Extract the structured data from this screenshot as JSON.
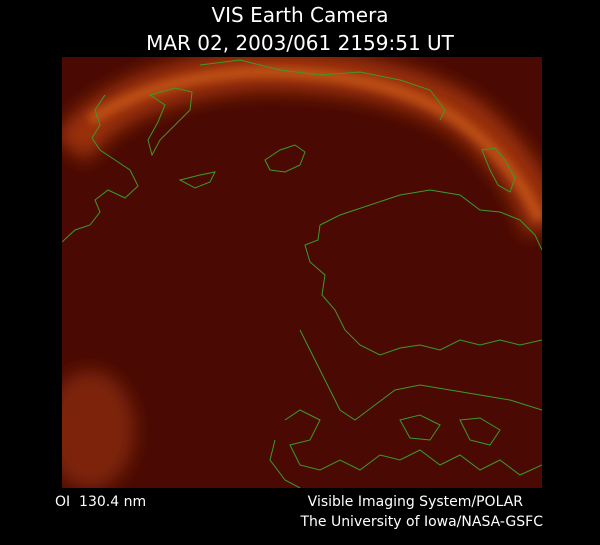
{
  "header": {
    "title": "VIS Earth Camera",
    "timestamp": "MAR 02, 2003/061 2159:51 UT"
  },
  "footer": {
    "filter": "OI  130.4 nm",
    "credit_line1": "Visible Imaging System/POLAR",
    "credit_line2": "The University of Iowa/NASA-GSFC"
  }
}
